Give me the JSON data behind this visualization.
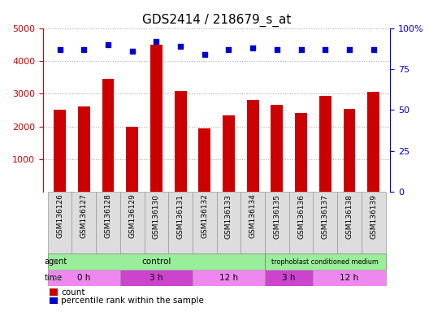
{
  "title": "GDS2414 / 218679_s_at",
  "samples": [
    "GSM136126",
    "GSM136127",
    "GSM136128",
    "GSM136129",
    "GSM136130",
    "GSM136131",
    "GSM136132",
    "GSM136133",
    "GSM136134",
    "GSM136135",
    "GSM136136",
    "GSM136137",
    "GSM136138",
    "GSM136139"
  ],
  "counts": [
    2500,
    2600,
    3450,
    2000,
    4500,
    3080,
    1950,
    2330,
    2820,
    2670,
    2400,
    2930,
    2530,
    3060
  ],
  "percentile_ranks": [
    87,
    87,
    90,
    86,
    92,
    89,
    84,
    87,
    88,
    87,
    87,
    87,
    87,
    87
  ],
  "bar_color": "#cc0000",
  "dot_color": "#0000cc",
  "ylim_left": [
    0,
    5000
  ],
  "ylim_right": [
    0,
    100
  ],
  "yticks_left": [
    1000,
    2000,
    3000,
    4000,
    5000
  ],
  "yticks_right": [
    0,
    25,
    50,
    75,
    100
  ],
  "grid_color": "#aaaaaa",
  "xlabel_color": "#cc0000",
  "tick_label_fontsize": 7,
  "title_fontsize": 11,
  "bar_width": 0.5,
  "background_color": "#ffffff",
  "plot_bg_color": "#ffffff",
  "xticklabel_bg": "#dddddd",
  "agent_control_color": "#99ee99",
  "time_color_light": "#ee88ee",
  "time_color_dark": "#cc44cc",
  "time_labels": [
    "0 h",
    "3 h",
    "12 h",
    "3 h",
    "12 h"
  ],
  "time_starts": [
    0,
    3,
    6,
    9,
    11
  ],
  "time_ends": [
    3,
    6,
    9,
    11,
    14
  ],
  "time_colors": [
    "#ee88ee",
    "#cc44cc",
    "#ee88ee",
    "#cc44cc",
    "#ee88ee"
  ]
}
